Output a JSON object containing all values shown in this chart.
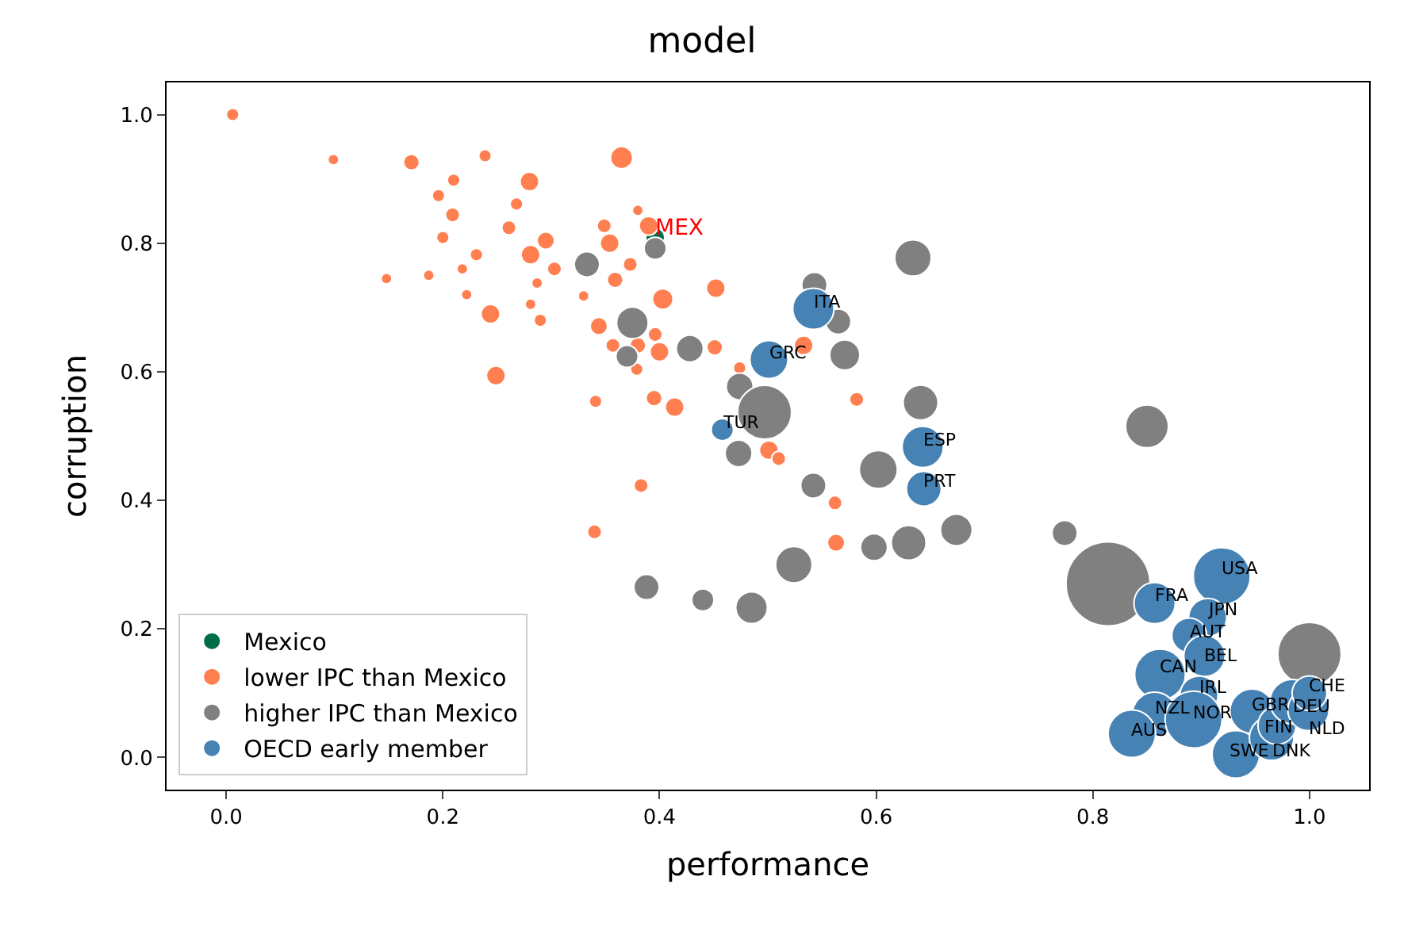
{
  "chart_data": {
    "type": "bubble",
    "title": "model",
    "xlabel": "performance",
    "ylabel": "corruption",
    "xlim": [
      -0.055,
      1.055
    ],
    "ylim": [
      -0.05,
      1.05
    ],
    "xticks": [
      {
        "value": 0,
        "label": "0.0"
      },
      0.2,
      0.4,
      0.6,
      0.8,
      {
        "value": 1,
        "label": "1.0"
      }
    ],
    "yticks": [
      {
        "value": 0,
        "label": "0.0"
      },
      0.2,
      0.4,
      0.6,
      0.8,
      {
        "value": 1,
        "label": "1.0"
      }
    ],
    "legend": "bottom left",
    "series": [
      {
        "name": "Mexico",
        "color": "#006d4a",
        "x": [
          0.396
        ],
        "values": [
          0.809
        ],
        "sizes": [
          0.051
        ]
      },
      {
        "name": "lower IPC than Mexico",
        "color": "#ff7f50",
        "x": [
          0.006,
          0.099,
          0.171,
          0.239,
          0.365,
          0.21,
          0.28,
          0.196,
          0.209,
          0.268,
          0.38,
          0.261,
          0.2,
          0.349,
          0.354,
          0.39,
          0.295,
          0.231,
          0.281,
          0.303,
          0.148,
          0.187,
          0.218,
          0.373,
          0.359,
          0.287,
          0.222,
          0.452,
          0.33,
          0.403,
          0.281,
          0.244,
          0.29,
          0.344,
          0.396,
          0.357,
          0.38,
          0.4,
          0.451,
          0.379,
          0.249,
          0.474,
          0.341,
          0.395,
          0.414,
          0.501,
          0.51,
          0.582,
          0.562,
          0.563,
          0.533,
          0.383,
          0.34
        ],
        "values": [
          1.0,
          0.93,
          0.926,
          0.936,
          0.933,
          0.898,
          0.896,
          0.874,
          0.844,
          0.861,
          0.851,
          0.824,
          0.809,
          0.827,
          0.8,
          0.827,
          0.804,
          0.782,
          0.782,
          0.76,
          0.745,
          0.75,
          0.76,
          0.767,
          0.743,
          0.738,
          0.72,
          0.73,
          0.718,
          0.713,
          0.705,
          0.69,
          0.68,
          0.671,
          0.658,
          0.641,
          0.641,
          0.631,
          0.638,
          0.604,
          0.594,
          0.606,
          0.554,
          0.559,
          0.545,
          0.478,
          0.465,
          0.557,
          0.396,
          0.334,
          0.641,
          0.423,
          0.351
        ],
        "sizes": [
          0.023,
          0.017,
          0.036,
          0.023,
          0.07,
          0.023,
          0.051,
          0.023,
          0.029,
          0.023,
          0.017,
          0.029,
          0.023,
          0.029,
          0.051,
          0.051,
          0.043,
          0.023,
          0.051,
          0.029,
          0.017,
          0.017,
          0.017,
          0.029,
          0.036,
          0.017,
          0.017,
          0.051,
          0.017,
          0.06,
          0.017,
          0.051,
          0.023,
          0.043,
          0.029,
          0.029,
          0.036,
          0.051,
          0.036,
          0.023,
          0.051,
          0.023,
          0.023,
          0.036,
          0.051,
          0.051,
          0.029,
          0.029,
          0.029,
          0.043,
          0.051,
          0.029,
          0.029
        ]
      },
      {
        "name": "higher IPC than Mexico",
        "color": "#808080",
        "x": [
          0.333,
          0.396,
          0.375,
          0.37,
          0.428,
          0.474,
          0.473,
          0.634,
          0.543,
          0.565,
          0.571,
          0.497,
          0.641,
          0.602,
          0.542,
          0.674,
          0.63,
          0.598,
          0.524,
          0.774,
          0.814,
          1.0,
          0.85,
          0.388,
          0.44,
          0.485
        ],
        "values": [
          0.767,
          0.792,
          0.676,
          0.624,
          0.636,
          0.577,
          0.473,
          0.777,
          0.735,
          0.678,
          0.626,
          0.537,
          0.552,
          0.448,
          0.423,
          0.354,
          0.334,
          0.327,
          0.3,
          0.349,
          0.27,
          0.161,
          0.515,
          0.265,
          0.245,
          0.233
        ],
        "sizes": [
          0.091,
          0.07,
          0.142,
          0.07,
          0.103,
          0.103,
          0.103,
          0.188,
          0.091,
          0.091,
          0.129,
          0.412,
          0.172,
          0.205,
          0.091,
          0.142,
          0.172,
          0.103,
          0.188,
          0.091,
          1,
          0.57,
          0.26,
          0.091,
          0.07,
          0.142
        ]
      },
      {
        "name": "OECD early member",
        "color": "#4682b4",
        "x": [
          0.458,
          0.501,
          0.542,
          0.643,
          0.644,
          0.919,
          0.857,
          0.906,
          0.889,
          0.903,
          0.862,
          0.898,
          0.857,
          0.893,
          0.836,
          0.947,
          0.932,
          0.965,
          0.97,
          0.984,
          0.999,
          1.0
        ],
        "values": [
          0.51,
          0.619,
          0.698,
          0.483,
          0.418,
          0.282,
          0.24,
          0.218,
          0.19,
          0.158,
          0.129,
          0.097,
          0.067,
          0.059,
          0.037,
          0.072,
          0.005,
          0.03,
          0.05,
          0.087,
          0.074,
          0.1
        ],
        "sizes": [
          0.07,
          0.205,
          0.241,
          0.241,
          0.172,
          0.461,
          0.241,
          0.205,
          0.172,
          0.241,
          0.365,
          0.205,
          0.279,
          0.461,
          0.32,
          0.279,
          0.32,
          0.279,
          0.205,
          0.279,
          0.241,
          0.172
        ]
      }
    ],
    "annotations": [
      {
        "text": "MEX",
        "x": 0.396,
        "y": 0.809
      },
      {
        "text": "TUR",
        "x": 0.458,
        "y": 0.51
      },
      {
        "text": "GRC",
        "x": 0.501,
        "y": 0.619
      },
      {
        "text": "ITA",
        "x": 0.542,
        "y": 0.698
      },
      {
        "text": "ESP",
        "x": 0.643,
        "y": 0.483
      },
      {
        "text": "PRT",
        "x": 0.644,
        "y": 0.418
      },
      {
        "text": "USA",
        "x": 0.919,
        "y": 0.282
      },
      {
        "text": "FRA",
        "x": 0.857,
        "y": 0.24
      },
      {
        "text": "JPN",
        "x": 0.906,
        "y": 0.218
      },
      {
        "text": "AUT",
        "x": 0.889,
        "y": 0.19
      },
      {
        "text": "BEL",
        "x": 0.903,
        "y": 0.158
      },
      {
        "text": "CAN",
        "x": 0.862,
        "y": 0.129
      },
      {
        "text": "IRL",
        "x": 0.898,
        "y": 0.097
      },
      {
        "text": "NZL",
        "x": 0.857,
        "y": 0.067
      },
      {
        "text": "NOR",
        "x": 0.893,
        "y": 0.059
      },
      {
        "text": "AUS",
        "x": 0.836,
        "y": 0.037
      },
      {
        "text": "GBR",
        "x": 0.947,
        "y": 0.072
      },
      {
        "text": "SWE",
        "x": 0.932,
        "y": 0.005
      },
      {
        "text": "DNK",
        "x": 0.965,
        "y": 0.03
      },
      {
        "text": "FIN",
        "x": 0.97,
        "y": 0.05
      },
      {
        "text": "DEU",
        "x": 0.984,
        "y": 0.087
      },
      {
        "text": "NLD",
        "x": 0.999,
        "y": 0.074
      },
      {
        "text": "CHE",
        "x": 1.0,
        "y": 0.1
      }
    ]
  }
}
